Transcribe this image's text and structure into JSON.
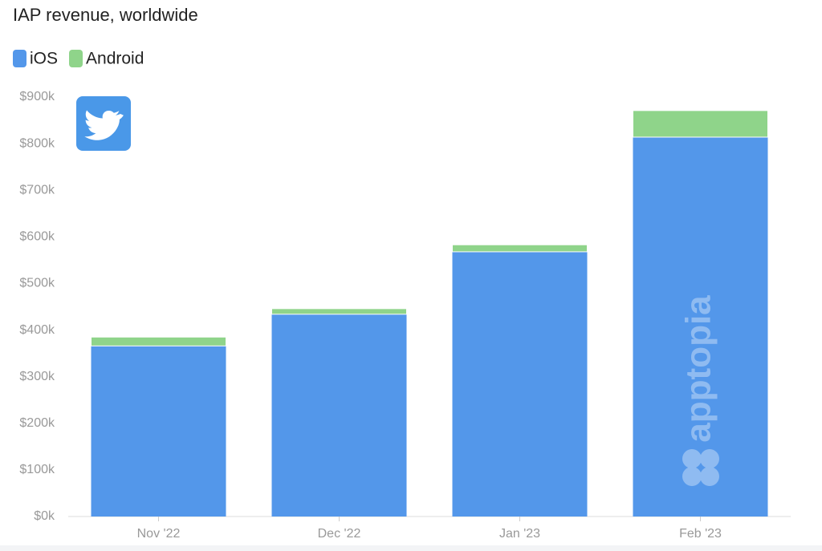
{
  "chart_data": {
    "type": "stacked_bar",
    "title": "IAP revenue, worldwide",
    "categories": [
      "Nov '22",
      "Dec '22",
      "Jan '23",
      "Feb '23"
    ],
    "series": [
      {
        "name": "iOS",
        "color": "#5397ea",
        "values": [
          366000,
          434000,
          568000,
          814000
        ]
      },
      {
        "name": "Android",
        "color": "#8fd48a",
        "values": [
          19000,
          12000,
          15000,
          57000
        ]
      }
    ],
    "ylim": [
      0,
      900000
    ],
    "yticks": [
      {
        "value": 0,
        "label": "$0k"
      },
      {
        "value": 100000,
        "label": "$100k"
      },
      {
        "value": 200000,
        "label": "$200k"
      },
      {
        "value": 300000,
        "label": "$300k"
      },
      {
        "value": 400000,
        "label": "$400k"
      },
      {
        "value": 500000,
        "label": "$500k"
      },
      {
        "value": 600000,
        "label": "$600k"
      },
      {
        "value": 700000,
        "label": "$700k"
      },
      {
        "value": 800000,
        "label": "$800k"
      },
      {
        "value": 900000,
        "label": "$900k"
      }
    ],
    "grid": false,
    "watermark": "apptopia"
  }
}
